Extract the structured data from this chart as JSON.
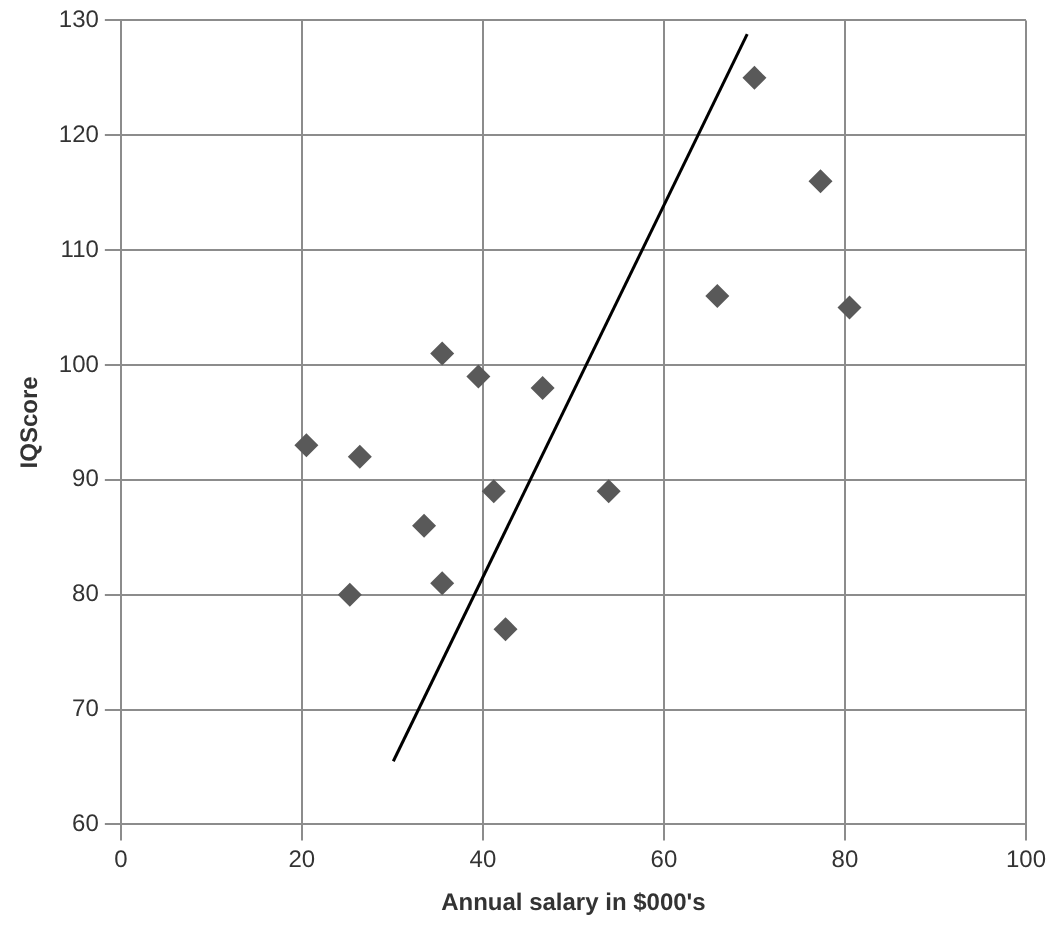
{
  "chart_data": {
    "type": "scatter",
    "xlabel": "Annual salary in $000's",
    "ylabel": "IQScore",
    "xlim": [
      0,
      100
    ],
    "xticks": [
      0,
      20,
      40,
      60,
      80,
      100
    ],
    "ylim": [
      60,
      130
    ],
    "yticks": [
      60,
      70,
      80,
      90,
      100,
      110,
      120,
      130
    ],
    "grid": true,
    "legend": false,
    "marker": "diamond",
    "series": [
      {
        "color": "#595959",
        "x": [
          20.5,
          26.4,
          35.5,
          39.5,
          46.6,
          41.2,
          33.5,
          35.5,
          25.3,
          42.5,
          70,
          77.3,
          65.9,
          80.5,
          53.9
        ],
        "values": [
          93,
          92,
          101,
          99,
          98,
          89,
          86,
          81,
          80,
          77,
          125,
          116,
          106,
          105,
          89
        ]
      },
      {
        "type": "line",
        "color": "#000000",
        "line_style": "solid",
        "marker": "none",
        "x": [
          30.1,
          69.2
        ],
        "values": [
          65.5,
          128.8
        ]
      }
    ]
  }
}
